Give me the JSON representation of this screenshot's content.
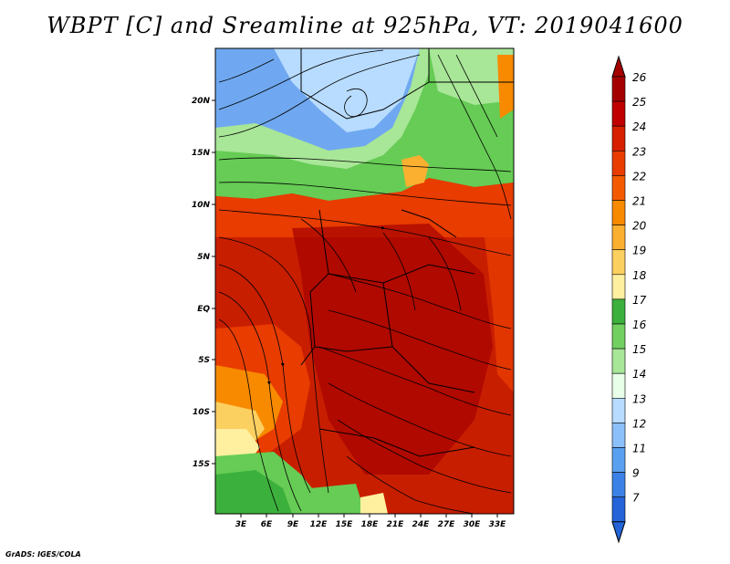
{
  "title": "WBPT [C] and Sreamline at 925hPa, VT: 2019041600",
  "footer": "GrADS: IGES/COLA",
  "map": {
    "lat_labels": [
      "20N",
      "15N",
      "10N",
      "5N",
      "EQ",
      "5S",
      "10S",
      "15S"
    ],
    "lon_labels": [
      "3E",
      "6E",
      "9E",
      "12E",
      "15E",
      "18E",
      "21E",
      "24E",
      "27E",
      "30E",
      "33E"
    ]
  },
  "colorbar": {
    "labels": [
      "26",
      "25",
      "24",
      "23",
      "22",
      "21",
      "20",
      "19",
      "18",
      "17",
      "16",
      "15",
      "14",
      "13",
      "12",
      "11",
      "9",
      "7"
    ],
    "colors": [
      "#a50000",
      "#c00000",
      "#d72000",
      "#e83c00",
      "#f45b00",
      "#f88a00",
      "#fbb030",
      "#fcd060",
      "#fff0a0",
      "#3cb03c",
      "#72d060",
      "#a8e698",
      "#e8ffe8",
      "#b8dcff",
      "#8cc0fa",
      "#5aa0f0",
      "#3c82e6",
      "#2464d8"
    ]
  },
  "legend_colors": {
    "land_hot": "#c81e00",
    "hot_mid": "#d63a10",
    "green": "#66cc55",
    "blue": "#6fa8f0"
  }
}
